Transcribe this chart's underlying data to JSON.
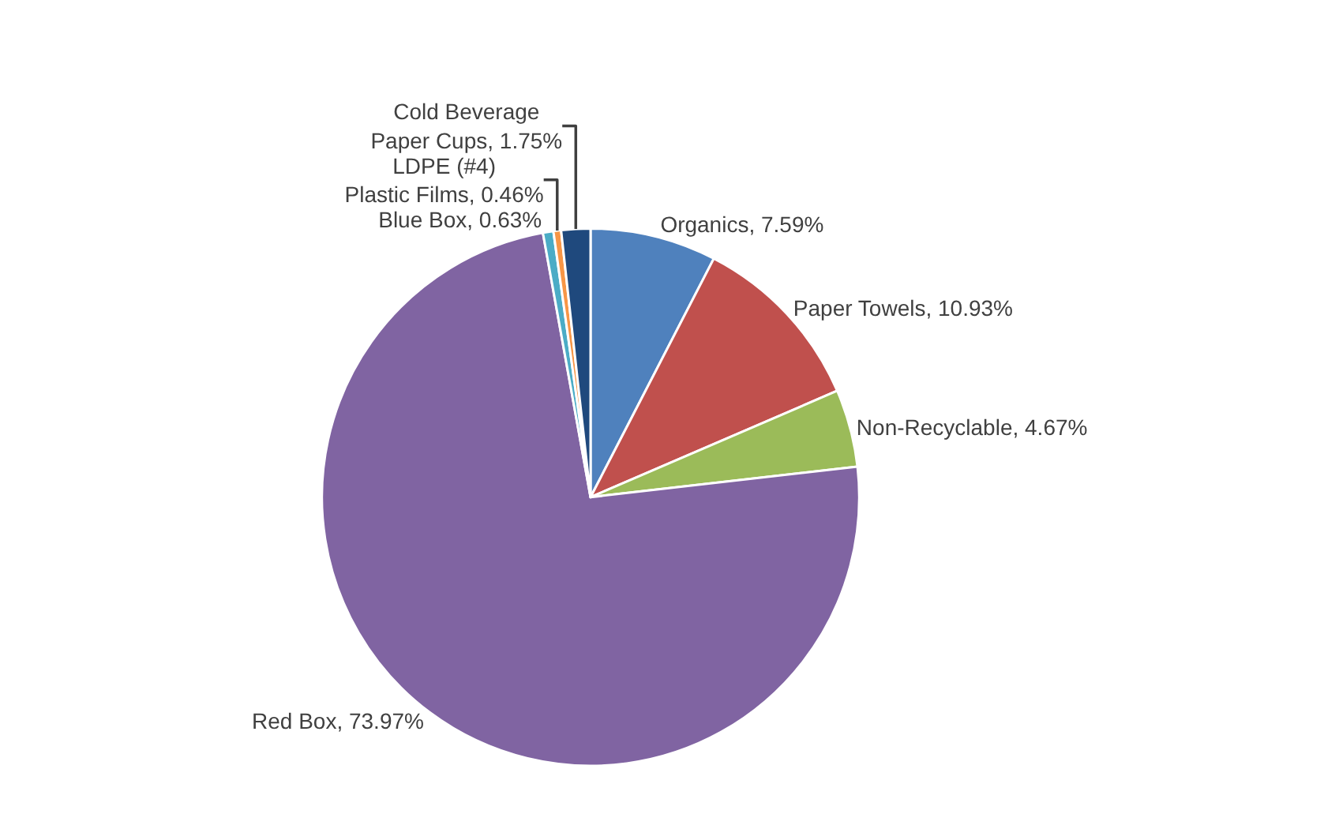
{
  "chart_data": {
    "type": "pie",
    "categories": [
      "Organics",
      "Paper Towels",
      "Non-Recyclable",
      "Red Box",
      "Blue Box",
      "LDPE (#4) Plastic Films",
      "Cold Beverage Paper Cups"
    ],
    "values": [
      7.59,
      10.93,
      4.67,
      73.97,
      0.63,
      0.46,
      1.75
    ],
    "value_labels": [
      "7.59%",
      "10.93%",
      "4.67%",
      "73.97%",
      "0.63%",
      "0.46%",
      "1.75%"
    ],
    "colors": [
      "#4f81bd",
      "#c0504d",
      "#9bbb59",
      "#8064a2",
      "#4bacc6",
      "#f79646",
      "#1f497d"
    ],
    "legend": false
  }
}
